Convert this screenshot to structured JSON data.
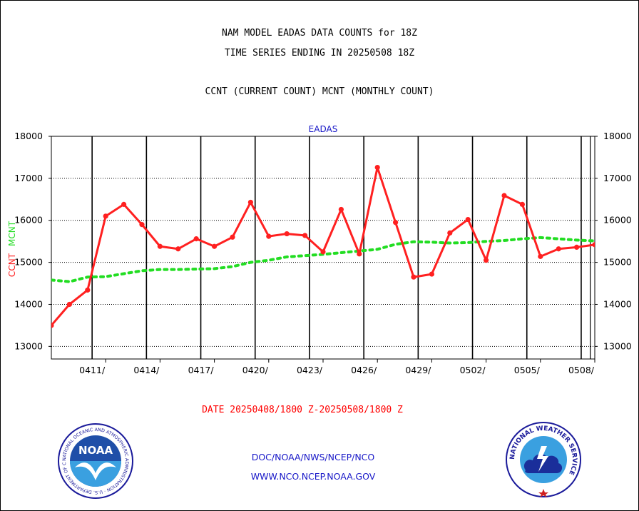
{
  "header": {
    "title_line1": "NAM MODEL EADAS DATA COUNTS for 18Z",
    "title_line2": "TIME SERIES ENDING IN 20250508 18Z",
    "description": "CCNT (CURRENT COUNT) MCNT (MONTHLY COUNT)"
  },
  "footer": {
    "date_range": "DATE 20250408/1800 Z-20250508/1800 Z",
    "link_doc": "DOC/NOAA/NWS/NCEP/NCO",
    "link_www": "WWW.NCO.NCEP.NOAA.GOV"
  },
  "logos": {
    "left": "NOAA",
    "left_ring": "NATIONAL OCEANIC AND ATMOSPHERIC ADMINISTRATION · U.S. DEPARTMENT OF COMMERCE ·",
    "right_ring": "NATIONAL WEATHER SERVICE"
  },
  "colors": {
    "ccnt": "#ff2020",
    "mcnt": "#22dd22",
    "title": "#000000",
    "panel_title": "#1818c8",
    "date": "#ff0000"
  },
  "chart_data": {
    "type": "line",
    "title": "EADAS",
    "ylabel_series1": "CCNT",
    "ylabel_series2": "MCNT",
    "xlabel": "",
    "ylim": [
      12700,
      18000
    ],
    "xlim": [
      0,
      30
    ],
    "yticks": [
      13000,
      14000,
      15000,
      16000,
      17000,
      18000
    ],
    "xtick_positions": [
      3,
      6,
      9,
      12,
      15,
      18,
      21,
      24,
      27,
      30
    ],
    "xtick_labels": [
      "0411/",
      "0414/",
      "0417/",
      "0420/",
      "0423/",
      "0426/",
      "0429/",
      "0502/",
      "0505/",
      "0508/"
    ],
    "x_grid_major": [
      2.25,
      5.25,
      8.25,
      11.25,
      14.25,
      17.25,
      20.25,
      23.25,
      26.25,
      29.25
    ],
    "x_grid_minor": [
      29.75
    ],
    "grid": true,
    "y_axis_both_sides": true,
    "series": [
      {
        "name": "CCNT",
        "style": "solid",
        "markers": true,
        "x": [
          0,
          1,
          2,
          3,
          4,
          5,
          6,
          7,
          8,
          9,
          10,
          11,
          12,
          13,
          14,
          15,
          16,
          17,
          18,
          19,
          20,
          21,
          22,
          23,
          24,
          25,
          26,
          27,
          28,
          29,
          30
        ],
        "values": [
          13500,
          14000,
          14340,
          16100,
          16380,
          15900,
          15380,
          15320,
          15560,
          15380,
          15600,
          16430,
          15620,
          15680,
          15640,
          15250,
          16260,
          15200,
          17260,
          15950,
          14650,
          14720,
          15700,
          16020,
          15050,
          16590,
          16380,
          15140,
          15320,
          15360,
          15420
        ]
      },
      {
        "name": "MCNT",
        "style": "dotted",
        "markers": false,
        "x": [
          0,
          1,
          2,
          3,
          4,
          5,
          6,
          7,
          8,
          9,
          10,
          11,
          12,
          13,
          14,
          15,
          16,
          17,
          18,
          19,
          20,
          21,
          22,
          23,
          24,
          25,
          26,
          27,
          28,
          29,
          30
        ],
        "values": [
          14580,
          14540,
          14650,
          14660,
          14730,
          14800,
          14830,
          14830,
          14840,
          14850,
          14900,
          15000,
          15050,
          15130,
          15160,
          15190,
          15230,
          15270,
          15310,
          15430,
          15490,
          15480,
          15460,
          15470,
          15500,
          15520,
          15560,
          15590,
          15560,
          15530,
          15510
        ]
      }
    ]
  }
}
